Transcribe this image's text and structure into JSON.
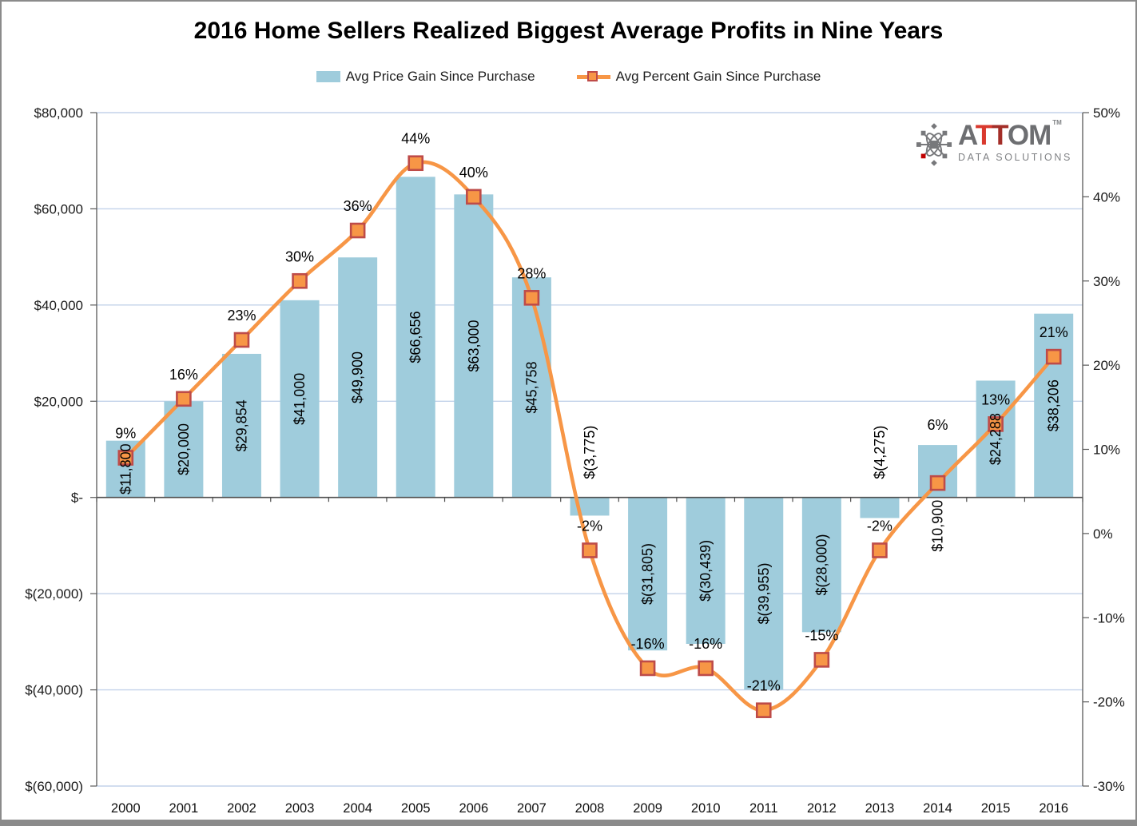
{
  "title": "2016 Home Sellers Realized Biggest Average Profits in Nine Years",
  "legend": {
    "items": [
      {
        "label": "Avg Price Gain Since Purchase",
        "swatch": "bar"
      },
      {
        "label": "Avg Percent Gain Since Purchase",
        "swatch": "line-marker"
      }
    ],
    "position": "top-center"
  },
  "logo": {
    "brand": "ATTOM",
    "tm": "TM",
    "subtitle": "DATA SOLUTIONS",
    "icon": "atom-molecule-icon"
  },
  "colors": {
    "bar": "#9fccdc",
    "line": "#f79646",
    "marker_fill": "#f79646",
    "marker_border": "#be4b48",
    "gridline": "#c3d2ea",
    "axis": "#595959",
    "zero_line": "#4d4d4d",
    "logo_gray": "#77787b",
    "logo_red": "#c00000",
    "logo_letter_colors": [
      "#6d6e71",
      "#d9392e",
      "#a32e28",
      "#6d6e71",
      "#6d6e71"
    ],
    "logo_sub_gray": "#808285"
  },
  "chart_data": {
    "type": "combo bar + line (dual axis)",
    "categories": [
      "2000",
      "2001",
      "2002",
      "2003",
      "2004",
      "2005",
      "2006",
      "2007",
      "2008",
      "2009",
      "2010",
      "2011",
      "2012",
      "2013",
      "2014",
      "2015",
      "2016"
    ],
    "series": [
      {
        "name": "Avg Price Gain Since Purchase",
        "type": "bar",
        "axis": "left",
        "values": [
          11800,
          20000,
          29854,
          41000,
          49900,
          66656,
          63000,
          45758,
          -3775,
          -31805,
          -30439,
          -39955,
          -28000,
          -4275,
          10900,
          24288,
          38206
        ],
        "data_labels": [
          "$11,800",
          "$20,000",
          "$29,854",
          "$41,000",
          "$49,900",
          "$66,656",
          "$63,000",
          "$45,758",
          "$(3,775)",
          "$(31,805)",
          "$(30,439)",
          "$(39,955)",
          "$(28,000)",
          "$(4,275)",
          "$10,900",
          "$24,288",
          "$38,206"
        ],
        "label_rotation": "vertical",
        "label_placement": [
          "center",
          "center",
          "center",
          "center",
          "center",
          "center",
          "center",
          "center",
          "above-zero",
          "center",
          "center",
          "center",
          "center",
          "above-zero",
          "below-zero",
          "center",
          "center"
        ]
      },
      {
        "name": "Avg Percent Gain Since Purchase",
        "type": "line",
        "axis": "right",
        "smooth": true,
        "values": [
          9,
          16,
          23,
          30,
          36,
          44,
          40,
          28,
          -2,
          -16,
          -16,
          -21,
          -15,
          -2,
          6,
          13,
          21
        ],
        "data_labels": [
          "9%",
          "16%",
          "23%",
          "30%",
          "36%",
          "44%",
          "40%",
          "28%",
          "-2%",
          "-16%",
          "-16%",
          "-21%",
          "-15%",
          "-2%",
          "6%",
          "13%",
          "21%"
        ],
        "label_position": "above-marker",
        "label_offset_overrides": {
          "14": -73
        }
      }
    ],
    "left_axis": {
      "min": -60000,
      "max": 80000,
      "step": 20000,
      "tick_labels": [
        "$80,000",
        "$60,000",
        "$40,000",
        "$20,000",
        "$-",
        "$(20,000)",
        "$(40,000)",
        "$(60,000)"
      ]
    },
    "right_axis": {
      "min": -30,
      "max": 50,
      "step": 10,
      "tick_labels": [
        "50%",
        "40%",
        "30%",
        "20%",
        "10%",
        "0%",
        "-10%",
        "-20%",
        "-30%"
      ]
    },
    "gridlines": "horizontal at left-axis major ticks",
    "legend_position": "top-center"
  }
}
